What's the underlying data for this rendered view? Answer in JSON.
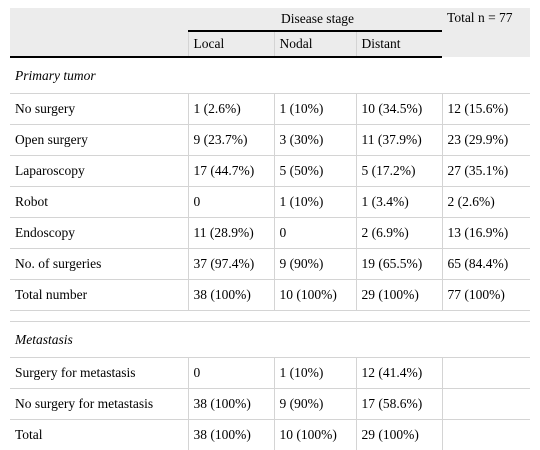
{
  "header": {
    "group_label": "Disease stage",
    "total_label": "Total n = 77",
    "columns": [
      "Local",
      "Nodal",
      "Distant"
    ]
  },
  "sections": [
    {
      "title": "Primary tumor",
      "rows": [
        {
          "label": "No surgery",
          "local": "1 (2.6%)",
          "nodal": "1 (10%)",
          "distant": "10 (34.5%)",
          "total": "12 (15.6%)"
        },
        {
          "label": "Open surgery",
          "local": "9 (23.7%)",
          "nodal": "3 (30%)",
          "distant": "11 (37.9%)",
          "total": "23 (29.9%)"
        },
        {
          "label": "Laparoscopy",
          "local": "17 (44.7%)",
          "nodal": "5 (50%)",
          "distant": "5 (17.2%)",
          "total": "27 (35.1%)"
        },
        {
          "label": "Robot",
          "local": "0",
          "nodal": "1 (10%)",
          "distant": "1 (3.4%)",
          "total": "2 (2.6%)"
        },
        {
          "label": "Endoscopy",
          "local": "11 (28.9%)",
          "nodal": "0",
          "distant": "2 (6.9%)",
          "total": "13 (16.9%)"
        },
        {
          "label": "No. of surgeries",
          "local": "37 (97.4%)",
          "nodal": "9 (90%)",
          "distant": "19 (65.5%)",
          "total": "65 (84.4%)"
        },
        {
          "label": "Total number",
          "local": "38 (100%)",
          "nodal": "10 (100%)",
          "distant": "29 (100%)",
          "total": "77 (100%)"
        }
      ]
    },
    {
      "title": "Metastasis",
      "rows": [
        {
          "label": "Surgery for metastasis",
          "local": "0",
          "nodal": "1 (10%)",
          "distant": "12 (41.4%)",
          "total": ""
        },
        {
          "label": "No surgery for metastasis",
          "local": "38 (100%)",
          "nodal": "9 (90%)",
          "distant": "17 (58.6%)",
          "total": ""
        },
        {
          "label": "Total",
          "local": "38 (100%)",
          "nodal": "10 (100%)",
          "distant": "29 (100%)",
          "total": ""
        }
      ]
    }
  ]
}
